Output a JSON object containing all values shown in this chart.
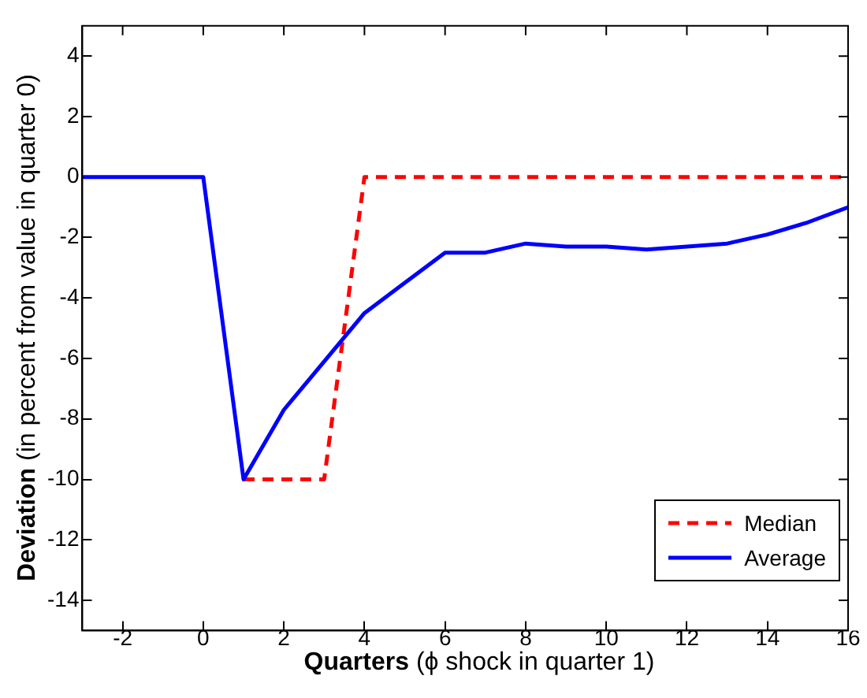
{
  "chart_data": {
    "type": "line",
    "xlabel": "Quarters (ϕ shock in quarter 1)",
    "ylabel": "Deviation (in percent from value in quarter 0)",
    "x": [
      -3,
      -2,
      -1,
      0,
      1,
      2,
      3,
      4,
      5,
      6,
      7,
      8,
      9,
      10,
      11,
      12,
      13,
      14,
      15,
      16
    ],
    "series": [
      {
        "name": "Median",
        "color": "#ff0000",
        "line_style": "dashed",
        "values": [
          null,
          null,
          null,
          null,
          -10,
          -10,
          -10,
          0,
          0,
          0,
          0,
          0,
          0,
          0,
          0,
          0,
          0,
          0,
          0,
          0
        ]
      },
      {
        "name": "Average",
        "color": "#0000ff",
        "line_style": "solid",
        "values": [
          0,
          0,
          0,
          0,
          -10,
          -7.7,
          -6.1,
          -4.5,
          -3.5,
          -2.5,
          -2.5,
          -2.2,
          -2.3,
          -2.3,
          -2.4,
          -2.3,
          -2.2,
          -1.9,
          -1.5,
          -1.0
        ]
      }
    ],
    "xlim": [
      -3,
      16
    ],
    "xticks": [
      -2,
      0,
      2,
      4,
      6,
      8,
      10,
      12,
      14,
      16
    ],
    "ylim": [
      -15,
      5
    ],
    "yticks": [
      -14,
      -12,
      -10,
      -8,
      -6,
      -4,
      -2,
      0,
      2,
      4
    ],
    "grid": false,
    "legend": "bottom right",
    "marker": "none"
  }
}
